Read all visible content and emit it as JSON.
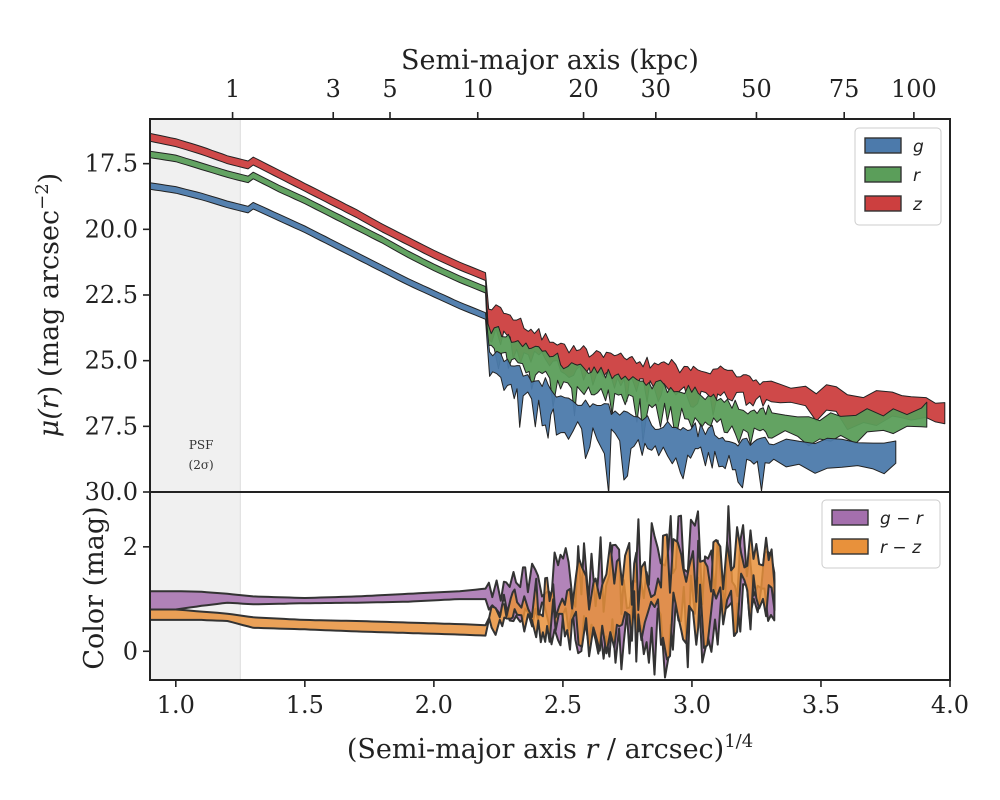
{
  "chart_data": [
    {
      "panel": "surface-brightness",
      "type": "area",
      "xlabel": "(Semi-major axis r / arcsec)^1/4",
      "xlabel_parts": [
        "(Semi-major axis ",
        "r",
        " / arcsec)",
        "1/4"
      ],
      "ylabel": "μ(r) (mag arcsec^−2)",
      "ylabel_parts": [
        "μ(",
        "r",
        ") (mag arcsec",
        "−2",
        ")"
      ],
      "top_xlabel": "Semi-major axis (kpc)",
      "top_ticks_kpc": [
        1,
        3,
        5,
        10,
        20,
        30,
        50,
        75,
        100
      ],
      "top_ticks_x": [
        1.22,
        1.61,
        1.83,
        2.17,
        2.58,
        2.86,
        3.25,
        3.59,
        3.86
      ],
      "top_tick_labels": [
        "1",
        "3",
        "5",
        "10",
        "20",
        "30",
        "50",
        "75",
        "100"
      ],
      "xlim": [
        0.9,
        4.0
      ],
      "ylim": [
        30.0,
        15.8
      ],
      "y_reversed": true,
      "xticks": [
        1.0,
        1.5,
        2.0,
        2.5,
        3.0,
        3.5,
        4.0
      ],
      "xtick_labels": [
        "1.0",
        "1.5",
        "2.0",
        "2.5",
        "3.0",
        "3.5",
        "4.0"
      ],
      "yticks": [
        17.5,
        20.0,
        22.5,
        25.0,
        27.5,
        30.0
      ],
      "ytick_labels": [
        "17.5",
        "20.0",
        "22.5",
        "25.0",
        "27.5",
        "30.0"
      ],
      "psf_region": {
        "x": [
          0.9,
          1.25
        ],
        "label": "PSF",
        "sublabel": "(2σ)"
      },
      "legend_position": "top-right",
      "series": [
        {
          "name": "g",
          "color": "#4c7aab",
          "x_end": 3.79,
          "smooth": [
            [
              0.9,
              18.35
            ],
            [
              1.0,
              18.5
            ],
            [
              1.1,
              18.75
            ],
            [
              1.2,
              19.05
            ],
            [
              1.28,
              19.25
            ],
            [
              1.3,
              19.1
            ],
            [
              1.4,
              19.55
            ],
            [
              1.5,
              20.0
            ],
            [
              1.6,
              20.5
            ],
            [
              1.7,
              21.0
            ],
            [
              1.8,
              21.5
            ],
            [
              1.9,
              22.0
            ],
            [
              2.0,
              22.45
            ],
            [
              2.1,
              22.9
            ],
            [
              2.2,
              23.3
            ]
          ],
          "spread": 0.25,
          "noise": [
            [
              2.2,
              25.0,
              0.6
            ],
            [
              2.5,
              26.8,
              1.5
            ],
            [
              2.8,
              27.7,
              1.5
            ],
            [
              3.0,
              28.0,
              1.2
            ],
            [
              3.2,
              28.5,
              0.8
            ],
            [
              3.5,
              28.5,
              0.6
            ],
            [
              3.79,
              28.6,
              0.6
            ]
          ]
        },
        {
          "name": "r",
          "color": "#5b9e5a",
          "x_end": 3.91,
          "smooth": [
            [
              0.9,
              17.15
            ],
            [
              1.0,
              17.3
            ],
            [
              1.1,
              17.6
            ],
            [
              1.2,
              17.9
            ],
            [
              1.28,
              18.1
            ],
            [
              1.3,
              17.95
            ],
            [
              1.4,
              18.45
            ],
            [
              1.5,
              18.9
            ],
            [
              1.6,
              19.4
            ],
            [
              1.7,
              19.9
            ],
            [
              1.8,
              20.4
            ],
            [
              1.9,
              20.95
            ],
            [
              2.0,
              21.45
            ],
            [
              2.1,
              21.9
            ],
            [
              2.2,
              22.3
            ]
          ],
          "spread": 0.25,
          "noise": [
            [
              2.2,
              24.1,
              0.5
            ],
            [
              2.5,
              25.5,
              1.0
            ],
            [
              2.8,
              26.2,
              1.1
            ],
            [
              3.0,
              26.6,
              1.0
            ],
            [
              3.2,
              27.3,
              0.6
            ],
            [
              3.5,
              27.6,
              0.5
            ],
            [
              3.91,
              27.2,
              0.6
            ]
          ]
        },
        {
          "name": "z",
          "color": "#cc3f3f",
          "x_end": 3.98,
          "smooth": [
            [
              0.9,
              16.5
            ],
            [
              1.0,
              16.7
            ],
            [
              1.1,
              17.0
            ],
            [
              1.2,
              17.35
            ],
            [
              1.28,
              17.55
            ],
            [
              1.3,
              17.4
            ],
            [
              1.4,
              17.9
            ],
            [
              1.5,
              18.4
            ],
            [
              1.6,
              18.9
            ],
            [
              1.7,
              19.4
            ],
            [
              1.8,
              19.95
            ],
            [
              1.9,
              20.45
            ],
            [
              2.0,
              20.95
            ],
            [
              2.1,
              21.4
            ],
            [
              2.2,
              21.8
            ]
          ],
          "spread": 0.3,
          "noise": [
            [
              2.2,
              23.3,
              0.5
            ],
            [
              2.5,
              24.9,
              0.8
            ],
            [
              2.8,
              25.4,
              0.8
            ],
            [
              3.0,
              25.8,
              0.7
            ],
            [
              3.2,
              26.0,
              0.5
            ],
            [
              3.5,
              26.6,
              0.7
            ],
            [
              3.98,
              27.0,
              0.8
            ]
          ]
        }
      ]
    },
    {
      "panel": "color",
      "type": "area",
      "ylabel": "Color (mag)",
      "xlim": [
        0.9,
        4.0
      ],
      "ylim": [
        -0.55,
        3.05
      ],
      "yticks": [
        0,
        2
      ],
      "ytick_labels": [
        "0",
        "2"
      ],
      "legend_position": "top-right",
      "series": [
        {
          "name": "g − r",
          "legend_parts": [
            "g",
            " − ",
            "r"
          ],
          "color": "#a46fad",
          "x_end": 3.32,
          "smooth": [
            [
              0.9,
              1.15,
              0.8
            ],
            [
              1.0,
              1.15,
              0.8
            ],
            [
              1.1,
              1.14,
              0.87
            ],
            [
              1.2,
              1.1,
              0.93
            ],
            [
              1.3,
              1.05,
              0.9
            ],
            [
              1.5,
              1.02,
              0.92
            ],
            [
              1.7,
              1.05,
              0.93
            ],
            [
              1.9,
              1.1,
              0.95
            ],
            [
              2.1,
              1.15,
              1.0
            ],
            [
              2.2,
              1.2,
              1.0
            ]
          ],
          "noise": [
            [
              2.2,
              1.05,
              0.35
            ],
            [
              2.4,
              1.0,
              0.9
            ],
            [
              2.6,
              1.0,
              1.6
            ],
            [
              2.8,
              1.0,
              2.0
            ],
            [
              3.0,
              1.1,
              2.0
            ],
            [
              3.15,
              1.2,
              2.0
            ],
            [
              3.32,
              1.3,
              0.9
            ]
          ]
        },
        {
          "name": "r − z",
          "legend_parts": [
            "r",
            " − ",
            "z"
          ],
          "color": "#e8913b",
          "x_end": 3.32,
          "smooth": [
            [
              0.9,
              0.8,
              0.6
            ],
            [
              1.0,
              0.8,
              0.6
            ],
            [
              1.1,
              0.76,
              0.6
            ],
            [
              1.2,
              0.72,
              0.58
            ],
            [
              1.3,
              0.65,
              0.45
            ],
            [
              1.5,
              0.6,
              0.42
            ],
            [
              1.7,
              0.58,
              0.38
            ],
            [
              1.9,
              0.55,
              0.35
            ],
            [
              2.1,
              0.52,
              0.32
            ],
            [
              2.2,
              0.5,
              0.3
            ]
          ],
          "noise": [
            [
              2.2,
              0.6,
              0.35
            ],
            [
              2.4,
              0.8,
              0.8
            ],
            [
              2.6,
              0.9,
              1.3
            ],
            [
              2.8,
              1.0,
              1.6
            ],
            [
              3.0,
              1.1,
              1.5
            ],
            [
              3.15,
              1.3,
              1.5
            ],
            [
              3.32,
              1.4,
              0.9
            ]
          ]
        }
      ]
    }
  ]
}
